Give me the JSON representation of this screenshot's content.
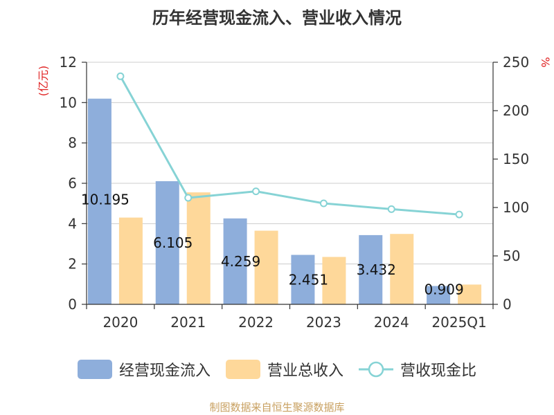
{
  "chart_data": {
    "type": "bar",
    "title": "历年经营现金流入、营业收入情况",
    "categories": [
      "2020",
      "2021",
      "2022",
      "2023",
      "2024",
      "2025Q1"
    ],
    "y_left": {
      "unit_label": "(亿元)",
      "ylim": [
        0,
        12
      ],
      "ticks": [
        "0",
        "2",
        "4",
        "6",
        "8",
        "10",
        "12"
      ]
    },
    "y_right": {
      "unit_label": "%",
      "ylim": [
        0,
        250
      ],
      "ticks": [
        "0",
        "50",
        "100",
        "150",
        "200",
        "250"
      ]
    },
    "grid": true,
    "legend_position": "bottom",
    "series": [
      {
        "name": "经营现金流入",
        "type": "bar",
        "axis": "left",
        "color": "#8eaedb",
        "values": [
          10.195,
          6.105,
          4.259,
          2.451,
          3.432,
          0.909
        ],
        "labels": [
          "10.195",
          "6.105",
          "4.259",
          "2.451",
          "3.432",
          "0.909"
        ]
      },
      {
        "name": "营业总收入",
        "type": "bar",
        "axis": "left",
        "color": "#fed89a",
        "values": [
          4.3,
          5.55,
          3.65,
          2.35,
          3.49,
          0.98
        ]
      },
      {
        "name": "营收现金比",
        "type": "line",
        "axis": "right",
        "color": "#86d3d5",
        "values": [
          235.5,
          110.0,
          116.7,
          104.3,
          98.3,
          92.8
        ]
      }
    ]
  },
  "source_note": "制图数据来自恒生聚源数据库"
}
